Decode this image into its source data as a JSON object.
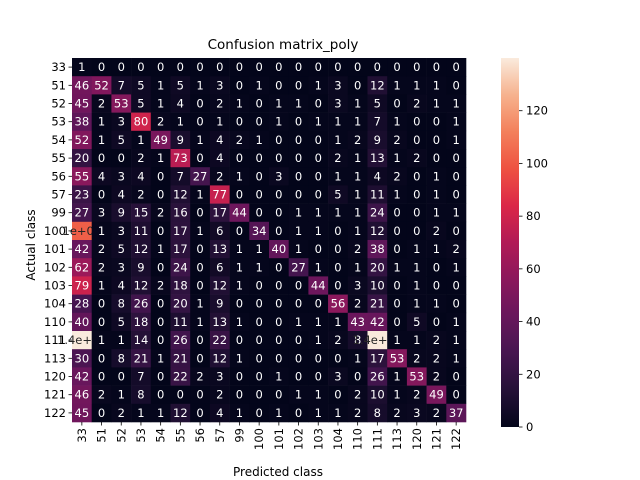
{
  "chart_data": {
    "type": "heatmap",
    "title": "Confusion matrix_poly",
    "xlabel": "Predicted class",
    "ylabel": "Actual class",
    "labels": [
      "33",
      "51",
      "52",
      "53",
      "54",
      "55",
      "56",
      "57",
      "99",
      "100",
      "101",
      "102",
      "103",
      "104",
      "110",
      "111",
      "113",
      "120",
      "121",
      "122"
    ],
    "matrix": [
      [
        1,
        0,
        0,
        0,
        0,
        0,
        0,
        0,
        0,
        0,
        0,
        0,
        0,
        0,
        0,
        0,
        0,
        0,
        0,
        0
      ],
      [
        46,
        52,
        7,
        5,
        1,
        5,
        1,
        3,
        0,
        1,
        0,
        0,
        1,
        3,
        0,
        12,
        1,
        1,
        1,
        0
      ],
      [
        45,
        2,
        53,
        5,
        1,
        4,
        0,
        2,
        1,
        0,
        1,
        1,
        0,
        3,
        1,
        5,
        0,
        2,
        1,
        1
      ],
      [
        38,
        1,
        3,
        80,
        2,
        1,
        0,
        1,
        0,
        0,
        1,
        0,
        1,
        1,
        1,
        7,
        1,
        0,
        0,
        1
      ],
      [
        52,
        1,
        5,
        1,
        49,
        9,
        1,
        4,
        2,
        1,
        0,
        0,
        0,
        1,
        2,
        9,
        2,
        0,
        0,
        1
      ],
      [
        20,
        0,
        0,
        2,
        1,
        73,
        0,
        4,
        0,
        0,
        0,
        0,
        0,
        2,
        1,
        13,
        1,
        2,
        0,
        0
      ],
      [
        55,
        4,
        3,
        4,
        0,
        7,
        27,
        2,
        1,
        0,
        3,
        0,
        0,
        1,
        1,
        4,
        2,
        0,
        1,
        0
      ],
      [
        23,
        0,
        4,
        2,
        0,
        12,
        1,
        77,
        0,
        0,
        0,
        0,
        0,
        5,
        1,
        11,
        1,
        0,
        1,
        0
      ],
      [
        27,
        3,
        9,
        15,
        2,
        16,
        0,
        17,
        44,
        0,
        0,
        1,
        1,
        1,
        1,
        24,
        0,
        0,
        1,
        1
      ],
      [
        102,
        1,
        3,
        11,
        0,
        17,
        1,
        6,
        0,
        34,
        0,
        1,
        1,
        0,
        1,
        12,
        0,
        0,
        2,
        0
      ],
      [
        42,
        2,
        5,
        12,
        1,
        17,
        0,
        13,
        1,
        1,
        40,
        1,
        0,
        0,
        2,
        38,
        0,
        1,
        1,
        2
      ],
      [
        62,
        2,
        3,
        9,
        0,
        24,
        0,
        6,
        1,
        1,
        0,
        27,
        1,
        0,
        1,
        20,
        1,
        1,
        0,
        1
      ],
      [
        79,
        1,
        4,
        12,
        2,
        18,
        0,
        12,
        1,
        0,
        0,
        0,
        44,
        0,
        3,
        10,
        0,
        1,
        0,
        0
      ],
      [
        28,
        0,
        8,
        26,
        0,
        20,
        1,
        9,
        0,
        0,
        0,
        0,
        0,
        56,
        2,
        21,
        0,
        1,
        1,
        0
      ],
      [
        40,
        0,
        5,
        18,
        0,
        11,
        1,
        13,
        1,
        0,
        0,
        1,
        1,
        1,
        43,
        42,
        0,
        5,
        0,
        1
      ],
      [
        140,
        1,
        1,
        14,
        0,
        26,
        0,
        22,
        0,
        0,
        0,
        0,
        1,
        2,
        8,
        140,
        1,
        1,
        2,
        1
      ],
      [
        30,
        0,
        8,
        21,
        1,
        21,
        0,
        12,
        1,
        0,
        0,
        0,
        0,
        0,
        1,
        17,
        53,
        2,
        2,
        1
      ],
      [
        42,
        0,
        0,
        7,
        0,
        22,
        2,
        3,
        0,
        0,
        1,
        0,
        0,
        3,
        0,
        26,
        1,
        53,
        2,
        0
      ],
      [
        46,
        2,
        1,
        8,
        0,
        0,
        0,
        2,
        0,
        0,
        0,
        1,
        1,
        0,
        2,
        10,
        1,
        2,
        49,
        0
      ],
      [
        45,
        0,
        2,
        1,
        1,
        12,
        0,
        4,
        1,
        0,
        1,
        0,
        1,
        1,
        2,
        8,
        2,
        3,
        2,
        37
      ]
    ],
    "cell_text": [
      [
        "1",
        "0",
        "0",
        "0",
        "0",
        "0",
        "0",
        "0",
        "0",
        "0",
        "0",
        "0",
        "0",
        "0",
        "0",
        "0",
        "0",
        "0",
        "0",
        "0"
      ],
      [
        "46",
        "52",
        "7",
        "5",
        "1",
        "5",
        "1",
        "3",
        "0",
        "1",
        "0",
        "0",
        "1",
        "3",
        "0",
        "12",
        "1",
        "1",
        "1",
        "0"
      ],
      [
        "45",
        "2",
        "53",
        "5",
        "1",
        "4",
        "0",
        "2",
        "1",
        "0",
        "1",
        "1",
        "0",
        "3",
        "1",
        "5",
        "0",
        "2",
        "1",
        "1"
      ],
      [
        "38",
        "1",
        "3",
        "80",
        "2",
        "1",
        "0",
        "1",
        "0",
        "0",
        "1",
        "0",
        "1",
        "1",
        "1",
        "7",
        "1",
        "0",
        "0",
        "1"
      ],
      [
        "52",
        "1",
        "5",
        "1",
        "49",
        "9",
        "1",
        "4",
        "2",
        "1",
        "0",
        "0",
        "0",
        "1",
        "2",
        "9",
        "2",
        "0",
        "0",
        "1"
      ],
      [
        "20",
        "0",
        "0",
        "2",
        "1",
        "73",
        "0",
        "4",
        "0",
        "0",
        "0",
        "0",
        "0",
        "2",
        "1",
        "13",
        "1",
        "2",
        "0",
        "0"
      ],
      [
        "55",
        "4",
        "3",
        "4",
        "0",
        "7",
        "27",
        "2",
        "1",
        "0",
        "3",
        "0",
        "0",
        "1",
        "1",
        "4",
        "2",
        "0",
        "1",
        "0"
      ],
      [
        "23",
        "0",
        "4",
        "2",
        "0",
        "12",
        "1",
        "77",
        "0",
        "0",
        "0",
        "0",
        "0",
        "5",
        "1",
        "11",
        "1",
        "0",
        "1",
        "0"
      ],
      [
        "27",
        "3",
        "9",
        "15",
        "2",
        "16",
        "0",
        "17",
        "44",
        "0",
        "0",
        "1",
        "1",
        "1",
        "1",
        "24",
        "0",
        "0",
        "1",
        "1"
      ],
      [
        "1e+02",
        "1",
        "3",
        "11",
        "0",
        "17",
        "1",
        "6",
        "0",
        "34",
        "0",
        "1",
        "1",
        "0",
        "1",
        "12",
        "0",
        "0",
        "2",
        "0"
      ],
      [
        "42",
        "2",
        "5",
        "12",
        "1",
        "17",
        "0",
        "13",
        "1",
        "1",
        "40",
        "1",
        "0",
        "0",
        "2",
        "38",
        "0",
        "1",
        "1",
        "2"
      ],
      [
        "62",
        "2",
        "3",
        "9",
        "0",
        "24",
        "0",
        "6",
        "1",
        "1",
        "0",
        "27",
        "1",
        "0",
        "1",
        "20",
        "1",
        "1",
        "0",
        "1"
      ],
      [
        "79",
        "1",
        "4",
        "12",
        "2",
        "18",
        "0",
        "12",
        "1",
        "0",
        "0",
        "0",
        "44",
        "0",
        "3",
        "10",
        "0",
        "1",
        "0",
        "0"
      ],
      [
        "28",
        "0",
        "8",
        "26",
        "0",
        "20",
        "1",
        "9",
        "0",
        "0",
        "0",
        "0",
        "0",
        "56",
        "2",
        "21",
        "0",
        "1",
        "1",
        "0"
      ],
      [
        "40",
        "0",
        "5",
        "18",
        "0",
        "11",
        "1",
        "13",
        "1",
        "0",
        "0",
        "1",
        "1",
        "1",
        "43",
        "42",
        "0",
        "5",
        "0",
        "1"
      ],
      [
        "1.4e+02",
        "1",
        "1",
        "14",
        "0",
        "26",
        "0",
        "22",
        "0",
        "0",
        "0",
        "0",
        "1",
        "2",
        "8",
        "1.4e+02",
        "1",
        "1",
        "2",
        "1"
      ],
      [
        "30",
        "0",
        "8",
        "21",
        "1",
        "21",
        "0",
        "12",
        "1",
        "0",
        "0",
        "0",
        "0",
        "0",
        "1",
        "17",
        "53",
        "2",
        "2",
        "1"
      ],
      [
        "42",
        "0",
        "0",
        "7",
        "0",
        "22",
        "2",
        "3",
        "0",
        "0",
        "1",
        "0",
        "0",
        "3",
        "0",
        "26",
        "1",
        "53",
        "2",
        "0"
      ],
      [
        "46",
        "2",
        "1",
        "8",
        "0",
        "0",
        "0",
        "2",
        "0",
        "0",
        "0",
        "1",
        "1",
        "0",
        "2",
        "10",
        "1",
        "2",
        "49",
        "0"
      ],
      [
        "45",
        "0",
        "2",
        "1",
        "1",
        "12",
        "0",
        "4",
        "1",
        "0",
        "1",
        "0",
        "1",
        "1",
        "2",
        "8",
        "2",
        "3",
        "2",
        "37"
      ]
    ],
    "colorbar": {
      "min": 0,
      "max": 140,
      "ticks": [
        0,
        20,
        40,
        60,
        80,
        100,
        120
      ],
      "colormap": "rocket"
    }
  }
}
